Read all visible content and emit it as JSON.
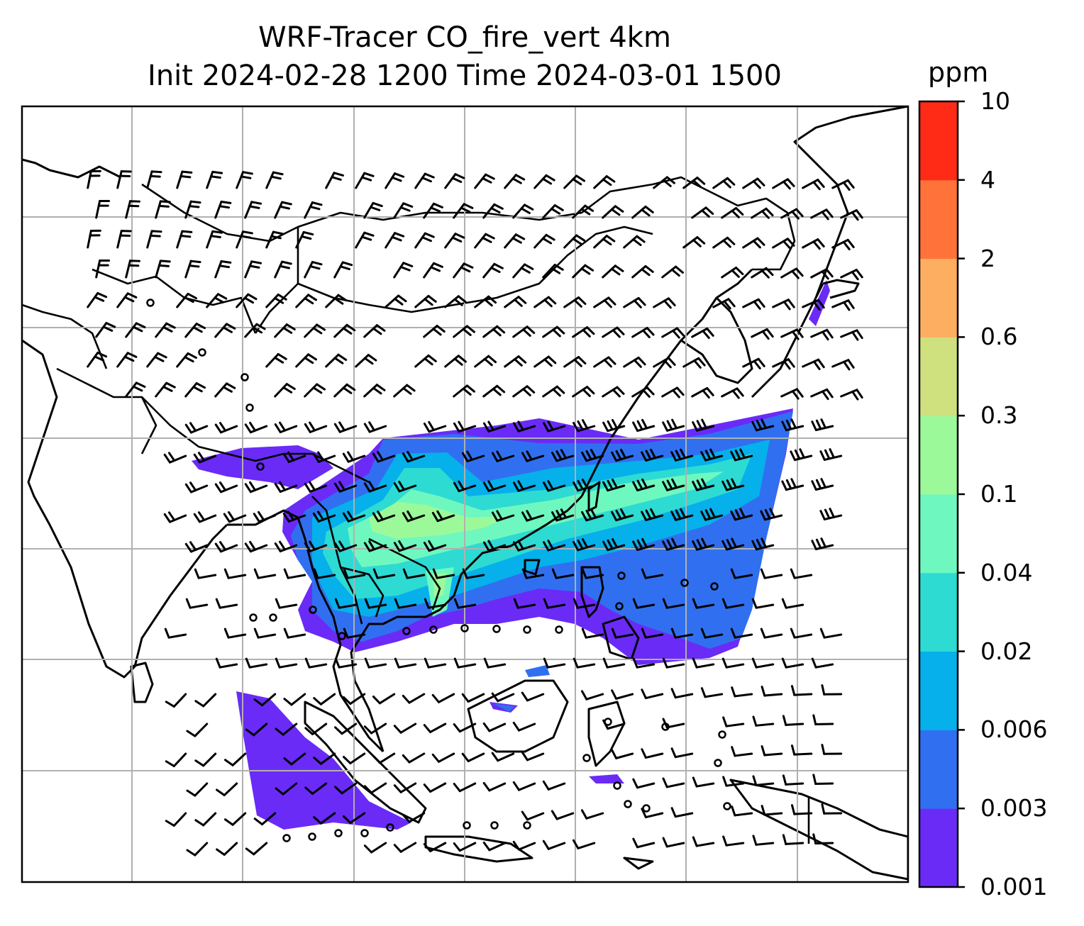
{
  "title": {
    "line1": "WRF-Tracer CO_fire_vert 4km",
    "line2": "Init 2024-02-28 1200 Time 2024-03-01 1500"
  },
  "colorbar": {
    "unit": "ppm",
    "tick_labels": [
      "0.001",
      "0.003",
      "0.006",
      "0.02",
      "0.04",
      "0.1",
      "0.3",
      "0.6",
      "2",
      "4",
      "10"
    ],
    "bin_colors": [
      "#6a2bf7",
      "#3070f0",
      "#06b0ea",
      "#2ddbd3",
      "#6ef8c0",
      "#9cf99a",
      "#cfe07f",
      "#fdae61",
      "#ff733a",
      "#ff2b16"
    ]
  },
  "map": {
    "layers": [
      "CO tracer concentration (filled contours)",
      "wind barbs",
      "coastlines",
      "country borders",
      "lat/lon gridlines"
    ],
    "projection_grid": "gridlines on"
  },
  "icons": {
    "calm_wind": "circle-icon",
    "wind": "wind-barb-icon"
  }
}
